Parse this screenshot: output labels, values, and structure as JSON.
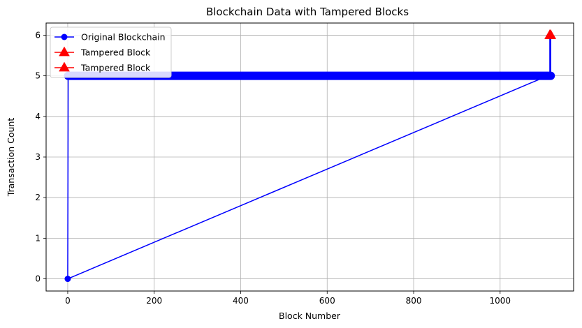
{
  "chart_data": {
    "type": "line",
    "title": "Blockchain Data with Tampered Blocks",
    "xlabel": "Block Number",
    "ylabel": "Transaction Count",
    "xlim": [
      -50,
      1170
    ],
    "ylim": [
      -0.3,
      6.3
    ],
    "xticks": [
      0,
      200,
      400,
      600,
      800,
      1000
    ],
    "yticks": [
      0,
      1,
      2,
      3,
      4,
      5,
      6
    ],
    "grid": true,
    "legend_position": "top-left",
    "series": [
      {
        "name": "Original Blockchain",
        "color": "#0000ff",
        "marker": "circle",
        "start": {
          "x": 0,
          "y": 0
        },
        "dense_range": {
          "x_from": 1,
          "x_to": 1109,
          "y": 5
        },
        "jump_back": {
          "x": 1,
          "y": 5
        },
        "end": [
          {
            "x": 1110,
            "y": 5
          },
          {
            "x": 1115,
            "y": 5
          },
          {
            "x": 1117,
            "y": 5
          }
        ]
      },
      {
        "name": "Tampered Block",
        "color": "#ff0000",
        "marker": "triangle",
        "points": [
          {
            "x": 1115,
            "y": 6
          }
        ]
      },
      {
        "name": "Tampered Block",
        "color": "#ff0000",
        "marker": "triangle",
        "points": [
          {
            "x": 1117,
            "y": 6
          }
        ]
      }
    ],
    "tampered_line": {
      "color": "#0000ff",
      "points": [
        {
          "x": 1115,
          "y": 5
        },
        {
          "x": 1115,
          "y": 6
        },
        {
          "x": 1117,
          "y": 6
        },
        {
          "x": 1117,
          "y": 5
        }
      ]
    }
  }
}
